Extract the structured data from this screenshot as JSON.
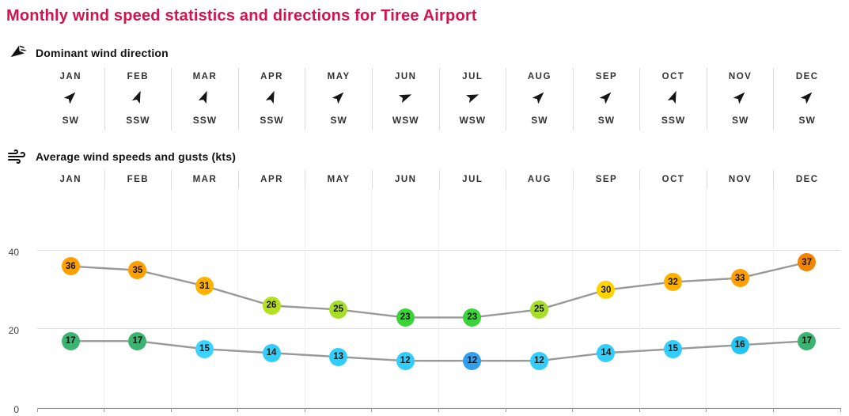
{
  "title": "Monthly wind speed statistics and directions for Tiree Airport",
  "colors": {
    "title": "#d4124b",
    "line": "#999999",
    "arrow": "#161616"
  },
  "direction": {
    "heading": "Dominant wind direction",
    "months": [
      "JAN",
      "FEB",
      "MAR",
      "APR",
      "MAY",
      "JUN",
      "JUL",
      "AUG",
      "SEP",
      "OCT",
      "NOV",
      "DEC"
    ],
    "values": [
      "SW",
      "SSW",
      "SSW",
      "SSW",
      "SW",
      "WSW",
      "WSW",
      "SW",
      "SW",
      "SSW",
      "SW",
      "SW"
    ]
  },
  "speeds": {
    "heading": "Average wind speeds and gusts (kts)"
  },
  "chart_data": {
    "type": "line",
    "title": "Average wind speeds and gusts (kts)",
    "categories": [
      "JAN",
      "FEB",
      "MAR",
      "APR",
      "MAY",
      "JUN",
      "JUL",
      "AUG",
      "SEP",
      "OCT",
      "NOV",
      "DEC"
    ],
    "series": [
      {
        "name": "gusts",
        "values": [
          36,
          35,
          31,
          26,
          25,
          23,
          23,
          25,
          30,
          32,
          33,
          37
        ],
        "point_colors": [
          "#ffa000",
          "#ffa000",
          "#ffb100",
          "#b4e020",
          "#a6de28",
          "#3ad43a",
          "#3ad43a",
          "#a6de28",
          "#ffd300",
          "#ffb100",
          "#ffa000",
          "#f28400"
        ]
      },
      {
        "name": "average wind speed",
        "values": [
          17,
          17,
          15,
          14,
          13,
          12,
          12,
          12,
          14,
          15,
          16,
          17
        ],
        "point_colors": [
          "#3cb371",
          "#3cb371",
          "#3ed2ff",
          "#33cdfb",
          "#33cdfb",
          "#33cdfb",
          "#2f9fee",
          "#33cdfb",
          "#33cdfb",
          "#33cdfb",
          "#22c5ef",
          "#3cb371"
        ]
      }
    ],
    "y_ticks": [
      0,
      20,
      40
    ],
    "ylim": [
      0,
      55.6
    ],
    "grid": "horizontal",
    "legend": "none"
  }
}
